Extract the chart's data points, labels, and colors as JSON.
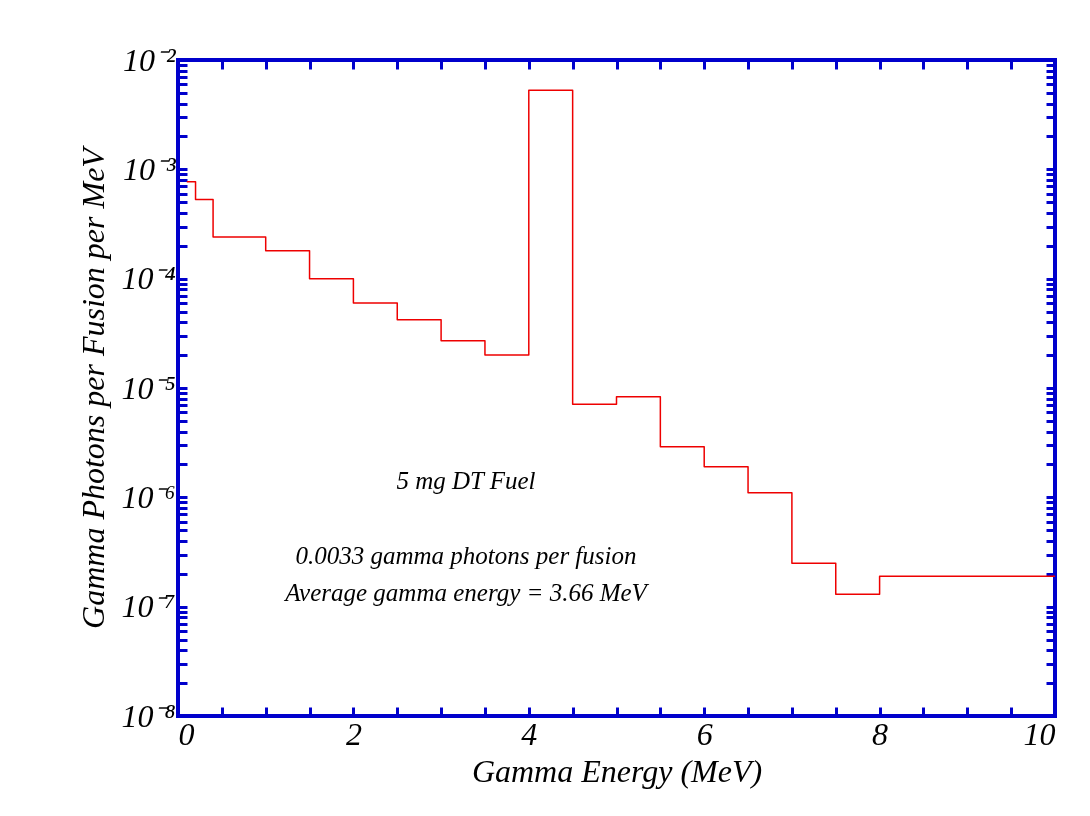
{
  "chart_data": {
    "type": "histogram",
    "xlabel": "Gamma  Energy  (MeV)",
    "ylabel": "Gamma  Photons  per  Fusion  per  MeV",
    "bins": [
      0.1,
      0.2,
      0.4,
      1,
      1.5,
      2,
      2.5,
      3,
      3.5,
      4,
      4.5,
      5,
      5.5,
      6,
      6.5,
      7,
      7.5,
      8,
      10
    ],
    "values": [
      0.00077,
      0.00053,
      0.00024,
      0.00018,
      0.0001,
      6e-05,
      4.2e-05,
      2.7e-05,
      2e-05,
      0.0053,
      7.1e-06,
      8.3e-06,
      2.9e-06,
      1.9e-06,
      1.1e-06,
      2.5e-07,
      1.3e-07,
      1.9e-07
    ],
    "color": "#ee0000",
    "log": true,
    "xlim": [
      0,
      10
    ],
    "ylim": [
      1e-08,
      0.01
    ],
    "xticks": [
      0,
      {
        "value": 0.5,
        "label": null
      },
      {
        "value": 1,
        "label": null
      },
      {
        "value": 1.5,
        "label": null
      },
      2,
      {
        "value": 2.5,
        "label": null
      },
      {
        "value": 3,
        "label": null
      },
      {
        "value": 3.5,
        "label": null
      },
      4,
      {
        "value": 4.5,
        "label": null
      },
      {
        "value": 5,
        "label": null
      },
      {
        "value": 5.5,
        "label": null
      },
      6,
      {
        "value": 6.5,
        "label": null
      },
      {
        "value": 7,
        "label": null
      },
      {
        "value": 7.5,
        "label": null
      },
      8,
      {
        "value": 8.5,
        "label": null
      },
      {
        "value": 9,
        "label": null
      },
      {
        "value": 9.5,
        "label": null
      },
      10
    ],
    "yticks": [
      {
        "value": 1e-08,
        "label": "10⁻⁸"
      },
      {
        "value": 2e-08,
        "label": null
      },
      {
        "value": 3e-08,
        "label": null
      },
      {
        "value": 4e-08,
        "label": null
      },
      {
        "value": 5e-08,
        "label": null
      },
      {
        "value": 6e-08,
        "label": null
      },
      {
        "value": 7e-08,
        "label": null
      },
      {
        "value": 8e-08,
        "label": null
      },
      {
        "value": 9e-08,
        "label": null
      },
      {
        "value": 1e-07,
        "label": "10⁻⁷"
      },
      {
        "value": 2e-07,
        "label": null
      },
      {
        "value": 3e-07,
        "label": null
      },
      {
        "value": 4e-07,
        "label": null
      },
      {
        "value": 5e-07,
        "label": null
      },
      {
        "value": 6e-07,
        "label": null
      },
      {
        "value": 7e-07,
        "label": null
      },
      {
        "value": 8e-07,
        "label": null
      },
      {
        "value": 9e-07,
        "label": null
      },
      {
        "value": 1e-06,
        "label": "10⁻⁶"
      },
      {
        "value": 2e-06,
        "label": null
      },
      {
        "value": 3e-06,
        "label": null
      },
      {
        "value": 4e-06,
        "label": null
      },
      {
        "value": 5e-06,
        "label": null
      },
      {
        "value": 6e-06,
        "label": null
      },
      {
        "value": 7e-06,
        "label": null
      },
      {
        "value": 8e-06,
        "label": null
      },
      {
        "value": 9e-06,
        "label": null
      },
      {
        "value": 1e-05,
        "label": "10⁻⁵"
      },
      {
        "value": 2e-05,
        "label": null
      },
      {
        "value": 3e-05,
        "label": null
      },
      {
        "value": 4e-05,
        "label": null
      },
      {
        "value": 5e-05,
        "label": null
      },
      {
        "value": 6e-05,
        "label": null
      },
      {
        "value": 7e-05,
        "label": null
      },
      {
        "value": 8e-05,
        "label": null
      },
      {
        "value": 9e-05,
        "label": null
      },
      {
        "value": 0.0001,
        "label": "10⁻⁴"
      },
      {
        "value": 0.0002,
        "label": null
      },
      {
        "value": 0.0003,
        "label": null
      },
      {
        "value": 0.0004,
        "label": null
      },
      {
        "value": 0.0005,
        "label": null
      },
      {
        "value": 0.0006,
        "label": null
      },
      {
        "value": 0.0007,
        "label": null
      },
      {
        "value": 0.0008,
        "label": null
      },
      {
        "value": 0.0009,
        "label": null
      },
      {
        "value": 0.001,
        "label": "10⁻³"
      },
      {
        "value": 0.002,
        "label": null
      },
      {
        "value": 0.003,
        "label": null
      },
      {
        "value": 0.004,
        "label": null
      },
      {
        "value": 0.005,
        "label": null
      },
      {
        "value": 0.006,
        "label": null
      },
      {
        "value": 0.007,
        "label": null
      },
      {
        "value": 0.008,
        "label": null
      },
      {
        "value": 0.009,
        "label": null
      },
      {
        "value": 0.01,
        "label": "10⁻²"
      }
    ],
    "annotations": [
      "5 mg DT Fuel",
      "0.0033 gamma photons per fusion",
      "Average gamma energy = 3.66 MeV"
    ]
  }
}
